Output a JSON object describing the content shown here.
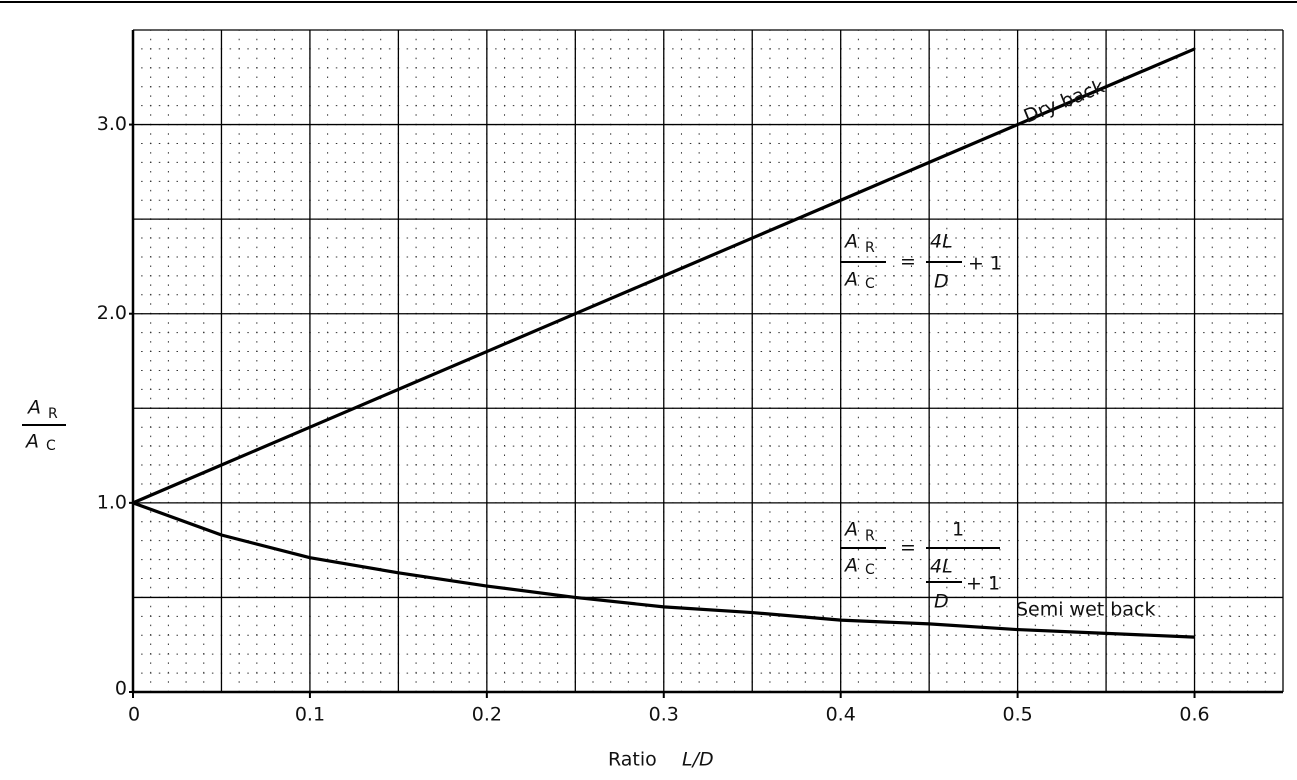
{
  "chart_data": {
    "type": "line",
    "x_label": {
      "text": "Ratio",
      "var": "L/D"
    },
    "y_label": {
      "num": "A",
      "num_sub": "R",
      "den": "A",
      "den_sub": "C"
    },
    "x": [
      0,
      0.05,
      0.1,
      0.15,
      0.2,
      0.25,
      0.3,
      0.35,
      0.4,
      0.45,
      0.5,
      0.55,
      0.6
    ],
    "series": [
      {
        "name": "Dry back",
        "color": "#000000",
        "values": [
          1,
          1.2,
          1.4,
          1.6,
          1.8,
          2.0,
          2.2,
          2.4,
          2.6,
          2.8,
          3.0,
          3.2,
          3.4
        ]
      },
      {
        "name": "Semi wet back",
        "color": "#000000",
        "values": [
          1,
          0.83,
          0.71,
          0.63,
          0.56,
          0.5,
          0.45,
          0.42,
          0.38,
          0.36,
          0.33,
          0.31,
          0.29
        ]
      }
    ],
    "xlim": [
      0,
      0.65
    ],
    "ylim": [
      0,
      3.5
    ],
    "xticks": [
      0,
      0.1,
      0.2,
      0.3,
      0.4,
      0.5,
      0.6
    ],
    "yticks": [
      0,
      {
        "value": 1,
        "label": "1.0"
      },
      {
        "value": 2,
        "label": "2.0"
      },
      {
        "value": 3,
        "label": "3.0"
      }
    ],
    "grid": {
      "x_major": 0.05,
      "y_major": 0.5,
      "x_minor": 0.01,
      "y_minor": 0.1
    },
    "formulas": [
      {
        "lhs_num": "A",
        "lhs_num_sub": "R",
        "lhs_den": "A",
        "lhs_den_sub": "C",
        "eq": "=",
        "rhs_num": "4L",
        "rhs_den": "D",
        "tail": "+ 1"
      },
      {
        "lhs_num": "A",
        "lhs_num_sub": "R",
        "lhs_den": "A",
        "lhs_den_sub": "C",
        "eq": "=",
        "rhs_num": "1",
        "inner_num": "4L",
        "inner_den": "D",
        "inner_tail": "+ 1"
      }
    ]
  }
}
